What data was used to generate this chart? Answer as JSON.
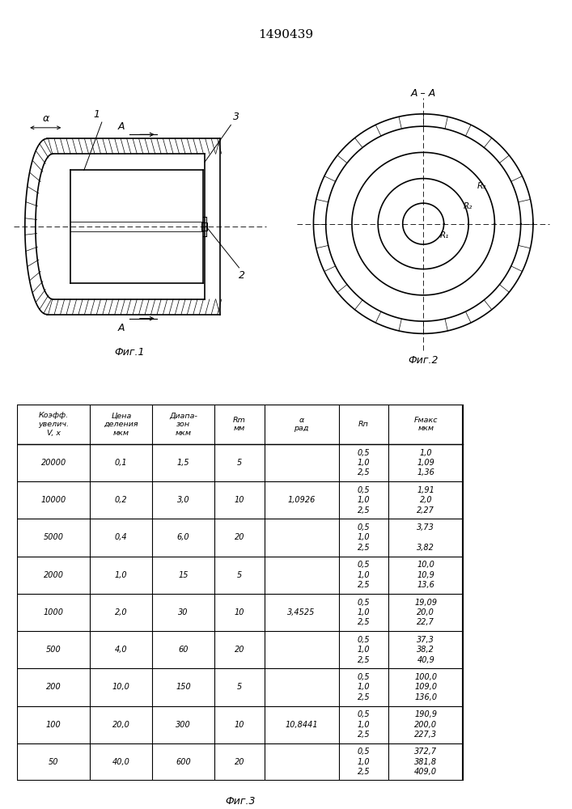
{
  "patent_number": "1490439",
  "fig1_label": "Фиг.1",
  "fig2_label": "Фиг.2",
  "fig3_label": "Фиг.3",
  "table_headers": [
    "Коэфф.\nувелич.\nV, x",
    "Цена\nделения\nмкм",
    "Диапа-\nзон\nмкм",
    "Rm\nмм",
    "α\nрад",
    "Rп",
    "Fмакс\nмкм"
  ],
  "table_data": [
    [
      "20000",
      "0,1",
      "1,5",
      "5",
      "",
      "0,5\n1,0\n2,5",
      "1,0\n1,09\n1,36"
    ],
    [
      "10000",
      "0,2",
      "3,0",
      "10",
      "1,0926",
      "0,5\n1,0\n2,5",
      "1,91\n2,0\n2,27"
    ],
    [
      "5000",
      "0,4",
      "6,0",
      "20",
      "",
      "0,5\n1,0\n2,5",
      "3,73\n \n3,82"
    ],
    [
      "2000",
      "1,0",
      "15",
      "5",
      "",
      "0,5\n1,0\n2,5",
      "10,0\n10,9\n13,6"
    ],
    [
      "1000",
      "2,0",
      "30",
      "10",
      "3,4525",
      "0,5\n1,0\n2,5",
      "19,09\n20,0\n22,7"
    ],
    [
      "500",
      "4,0",
      "60",
      "20",
      "",
      "0,5\n1,0\n2,5",
      "37,3\n38,2\n40,9"
    ],
    [
      "200",
      "10,0",
      "150",
      "5",
      "",
      "0,5\n1,0\n2,5",
      "100,0\n109,0\n136,0"
    ],
    [
      "100",
      "20,0",
      "300",
      "10",
      "10,8441",
      "0,5\n1,0\n2,5",
      "190,9\n200,0\n227,3"
    ],
    [
      "50",
      "40,0",
      "600",
      "20",
      "",
      "0,5\n1,0\n2,5",
      "372,7\n381,8\n409,0"
    ]
  ],
  "bg_color": "#ffffff",
  "line_color": "#000000",
  "text_color": "#000000"
}
